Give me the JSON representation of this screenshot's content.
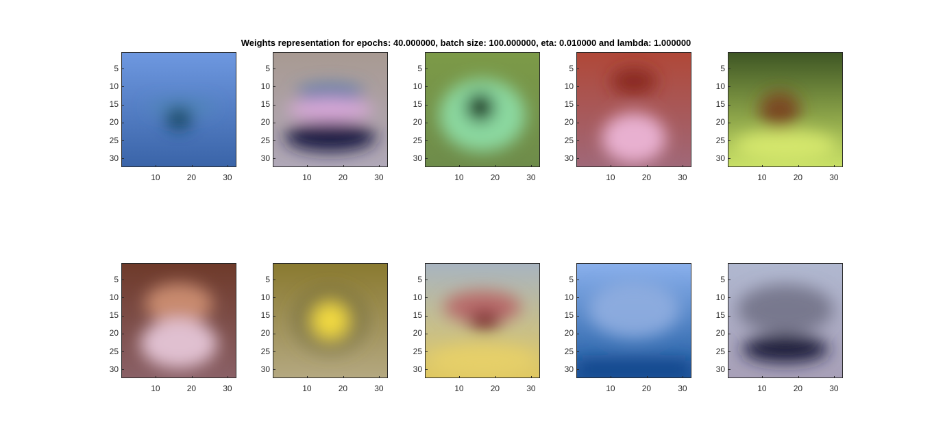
{
  "title": "Weights representation for epochs: 40.000000, batch size: 100.000000, eta: 0.010000 and lambda: 1.000000",
  "chart_data": {
    "type": "heatmap",
    "layout": {
      "rows": 2,
      "cols": 5
    },
    "image_size": [
      32,
      32
    ],
    "xlim": [
      0.5,
      32.5
    ],
    "ylim": [
      0.5,
      32.5
    ],
    "y_reversed": true,
    "xticks": [
      10,
      20,
      30
    ],
    "yticks": [
      5,
      10,
      15,
      20,
      25,
      30
    ],
    "grid": false,
    "panels": [
      {
        "bg_top": "#6e98e0",
        "bg_bottom": "#3a64a8",
        "blob": "#174a68",
        "accent": "#4f87b8",
        "shape": "airplane"
      },
      {
        "bg_top": "#a89a92",
        "bg_bottom": "#b0a8b8",
        "blob": "#d8a8d8",
        "accent": "#1e1a44",
        "shape": "car"
      },
      {
        "bg_top": "#7c9a48",
        "bg_bottom": "#6e8c4a",
        "blob": "#1e3a24",
        "accent": "#8ee0a8",
        "shape": "ring"
      },
      {
        "bg_top": "#b04838",
        "bg_bottom": "#a06878",
        "blob": "#8a2a24",
        "accent": "#e8b0d0",
        "shape": "cat"
      },
      {
        "bg_top": "#3e5624",
        "bg_bottom": "#c8e066",
        "blob": "#7a4a24",
        "accent": "#9cba40",
        "shape": "deer"
      },
      {
        "bg_top": "#6e3a2a",
        "bg_bottom": "#8a6066",
        "blob": "#e0c0d0",
        "accent": "#c88a6e",
        "shape": "dog"
      },
      {
        "bg_top": "#8a7a30",
        "bg_bottom": "#b4a880",
        "blob": "#f0d840",
        "accent": "#6e6a3c",
        "shape": "frog"
      },
      {
        "bg_top": "#a8b4c0",
        "bg_bottom": "#e0c860",
        "blob": "#7a2a2a",
        "accent": "#b86a6a",
        "shape": "horse"
      },
      {
        "bg_top": "#8ab0ec",
        "bg_bottom": "#1e5aa0",
        "blob": "#90aee0",
        "accent": "#5a8ad0",
        "shape": "ship"
      },
      {
        "bg_top": "#b0b8d0",
        "bg_bottom": "#a8a0b8",
        "blob": "#1c1c3a",
        "accent": "#6a6a80",
        "shape": "truck"
      }
    ]
  }
}
